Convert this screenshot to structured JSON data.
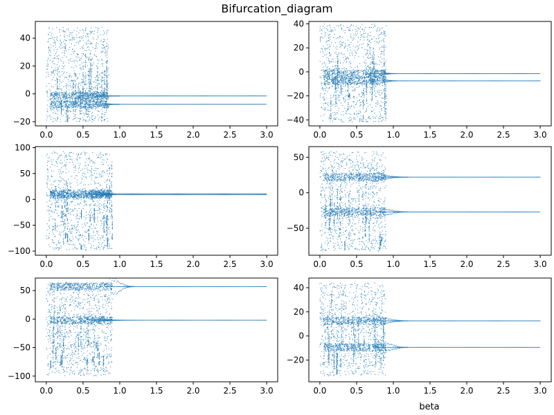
{
  "chart_data": {
    "type": "scatter",
    "title": "Bifurcation_diagram",
    "xlabel": "beta",
    "marker_color": "#1f77b4",
    "subplots": [
      {
        "id": "r1c1",
        "xlim": [
          -0.15,
          3.15
        ],
        "ylim": [
          -23,
          52
        ],
        "xticks": [
          0.0,
          0.5,
          1.0,
          1.5,
          2.0,
          2.5,
          3.0
        ],
        "xtick_labels": [
          "0.0",
          "0.5",
          "1.0",
          "1.5",
          "2.0",
          "2.5",
          "3.0"
        ],
        "yticks": [
          -20,
          0,
          20,
          40
        ],
        "ytick_labels": [
          "−20",
          "0",
          "20",
          "40"
        ],
        "chaos": {
          "x_end": 0.85,
          "y_min": -20,
          "y_max": 48
        },
        "branches": [
          {
            "start_x": 0.45,
            "start_y": 2,
            "y": -1.5,
            "x_end": 3.0
          },
          {
            "start_x": 0.55,
            "start_y": -12,
            "y": -7.5,
            "x_end": 3.0
          }
        ],
        "convergence_x": 1.0
      },
      {
        "id": "r1c2",
        "xlim": [
          -0.15,
          3.15
        ],
        "ylim": [
          -45,
          42
        ],
        "xticks": [
          0.0,
          0.5,
          1.0,
          1.5,
          2.0,
          2.5,
          3.0
        ],
        "xtick_labels": [
          "0.0",
          "0.5",
          "1.0",
          "1.5",
          "2.0",
          "2.5",
          "3.0"
        ],
        "yticks": [
          -40,
          -20,
          0,
          20,
          40
        ],
        "ytick_labels": [
          "−40",
          "−20",
          "0",
          "20",
          "40"
        ],
        "chaos": {
          "x_end": 0.9,
          "y_min": -42,
          "y_max": 40
        },
        "branches": [
          {
            "start_x": 0.65,
            "start_y": 5,
            "y": -1.5,
            "x_end": 3.0
          },
          {
            "start_x": 0.7,
            "start_y": -15,
            "y": -7.5,
            "x_end": 3.0
          }
        ],
        "convergence_x": 1.05
      },
      {
        "id": "r2c1",
        "xlim": [
          -0.15,
          3.15
        ],
        "ylim": [
          -108,
          102
        ],
        "xticks": [
          0.0,
          0.5,
          1.0,
          1.5,
          2.0,
          2.5,
          3.0
        ],
        "xtick_labels": [
          "0.0",
          "0.5",
          "1.0",
          "1.5",
          "2.0",
          "2.5",
          "3.0"
        ],
        "yticks": [
          -100,
          -50,
          0,
          50,
          100
        ],
        "ytick_labels": [
          "−100",
          "−50",
          "0",
          "50",
          "100"
        ],
        "chaos": {
          "x_end": 0.9,
          "y_min": -98,
          "y_max": 92
        },
        "branches": [
          {
            "start_x": 0.6,
            "start_y": 20,
            "y": 11,
            "x_end": 3.0
          },
          {
            "start_x": 0.6,
            "start_y": 0,
            "y": 9,
            "x_end": 3.0
          }
        ],
        "convergence_x": 0.95
      },
      {
        "id": "r2c2",
        "xlim": [
          -0.15,
          3.15
        ],
        "ylim": [
          -88,
          65
        ],
        "xticks": [
          0.0,
          0.5,
          1.0,
          1.5,
          2.0,
          2.5,
          3.0
        ],
        "xtick_labels": [
          "0.0",
          "0.5",
          "1.0",
          "1.5",
          "2.0",
          "2.5",
          "3.0"
        ],
        "yticks": [
          -50,
          0,
          50
        ],
        "ytick_labels": [
          "−50",
          "0",
          "50"
        ],
        "chaos": {
          "x_end": 0.9,
          "y_min": -82,
          "y_max": 58
        },
        "branches": [
          {
            "start_x": 0.7,
            "start_y": 30,
            "y": 22,
            "x_end": 3.0
          },
          {
            "start_x": 0.75,
            "start_y": -15,
            "y": -27,
            "x_end": 3.0
          }
        ],
        "convergence_x": 1.2
      },
      {
        "id": "r3c1",
        "xlim": [
          -0.15,
          3.15
        ],
        "ylim": [
          -110,
          72
        ],
        "xticks": [
          0.0,
          0.5,
          1.0,
          1.5,
          2.0,
          2.5,
          3.0
        ],
        "xtick_labels": [
          "0.0",
          "0.5",
          "1.0",
          "1.5",
          "2.0",
          "2.5",
          "3.0"
        ],
        "yticks": [
          -100,
          -50,
          0,
          50
        ],
        "ytick_labels": [
          "−100",
          "−50",
          "0",
          "50"
        ],
        "chaos": {
          "x_end": 0.9,
          "y_min": -100,
          "y_max": 65
        },
        "branches": [
          {
            "start_x": 0.8,
            "start_y": 20,
            "y": 57,
            "x_end": 3.0
          },
          {
            "start_x": 0.6,
            "start_y": -5,
            "y": -2,
            "x_end": 3.0
          }
        ],
        "convergence_x": 1.2
      },
      {
        "id": "r3c2",
        "xlim": [
          -0.15,
          3.15
        ],
        "ylim": [
          -38,
          48
        ],
        "xticks": [
          0.0,
          0.5,
          1.0,
          1.5,
          2.0,
          2.5,
          3.0
        ],
        "xtick_labels": [
          "0.0",
          "0.5",
          "1.0",
          "1.5",
          "2.0",
          "2.5",
          "3.0"
        ],
        "yticks": [
          -20,
          0,
          20,
          40
        ],
        "ytick_labels": [
          "−20",
          "0",
          "20",
          "40"
        ],
        "chaos": {
          "x_end": 0.9,
          "y_min": -33,
          "y_max": 44
        },
        "branches": [
          {
            "start_x": 0.7,
            "start_y": 5,
            "y": 12.5,
            "x_end": 3.0
          },
          {
            "start_x": 0.75,
            "start_y": -20,
            "y": -9.5,
            "x_end": 3.0
          }
        ],
        "convergence_x": 1.2
      }
    ]
  }
}
